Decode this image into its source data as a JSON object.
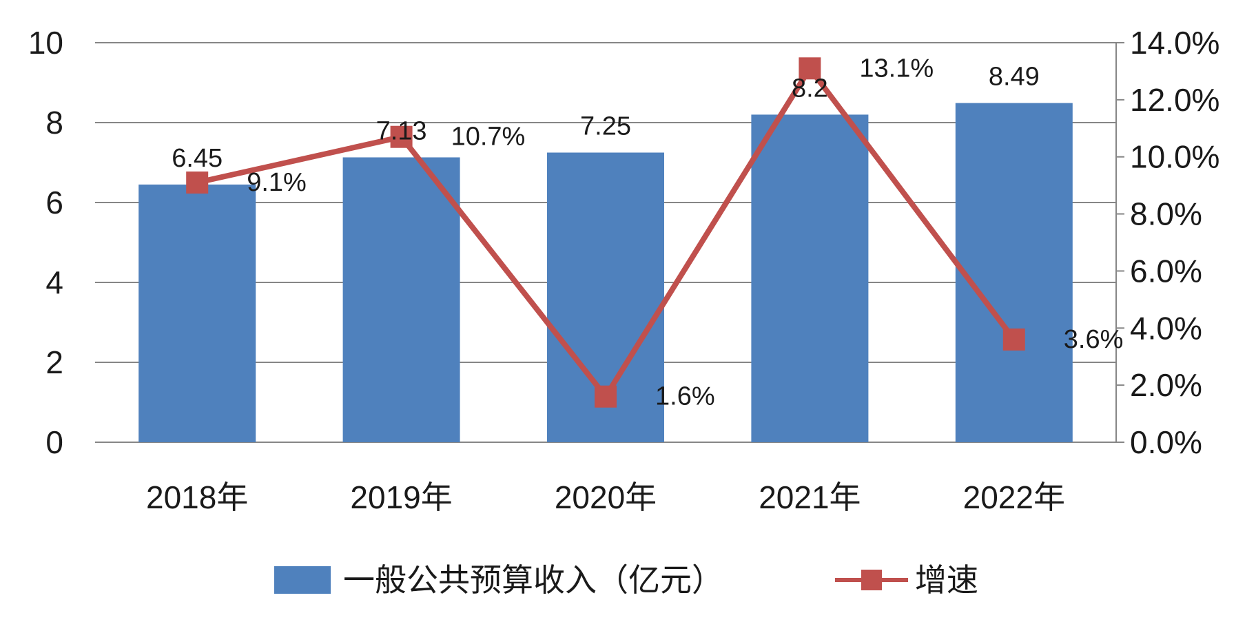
{
  "chart_data": {
    "type": "bar",
    "categories": [
      "2018年",
      "2019年",
      "2020年",
      "2021年",
      "2022年"
    ],
    "series": [
      {
        "name": "一般公共预算收入（亿元）",
        "type": "bar",
        "axis": "left",
        "color": "#4f81bd",
        "values": [
          6.45,
          7.13,
          7.25,
          8.2,
          8.49
        ],
        "labels": [
          "6.45",
          "7.13",
          "7.25",
          "8.2",
          "8.49"
        ]
      },
      {
        "name": "增速",
        "type": "line",
        "axis": "right",
        "color": "#c0504d",
        "values": [
          9.1,
          10.7,
          1.6,
          13.1,
          3.6
        ],
        "labels": [
          "9.1%",
          "10.7%",
          "1.6%",
          "13.1%",
          "3.6%"
        ]
      }
    ],
    "y_left": {
      "ylim": [
        0,
        10
      ],
      "ticks": [
        0,
        2,
        4,
        6,
        8,
        10
      ],
      "tick_labels": [
        "0",
        "2",
        "4",
        "6",
        "8",
        "10"
      ]
    },
    "y_right": {
      "ylim": [
        0,
        14
      ],
      "ticks": [
        0,
        2,
        4,
        6,
        8,
        10,
        12,
        14
      ],
      "tick_labels": [
        "0.0%",
        "2.0%",
        "4.0%",
        "6.0%",
        "8.0%",
        "10.0%",
        "12.0%",
        "14.0%"
      ]
    },
    "grid": true,
    "legend_position": "bottom"
  }
}
